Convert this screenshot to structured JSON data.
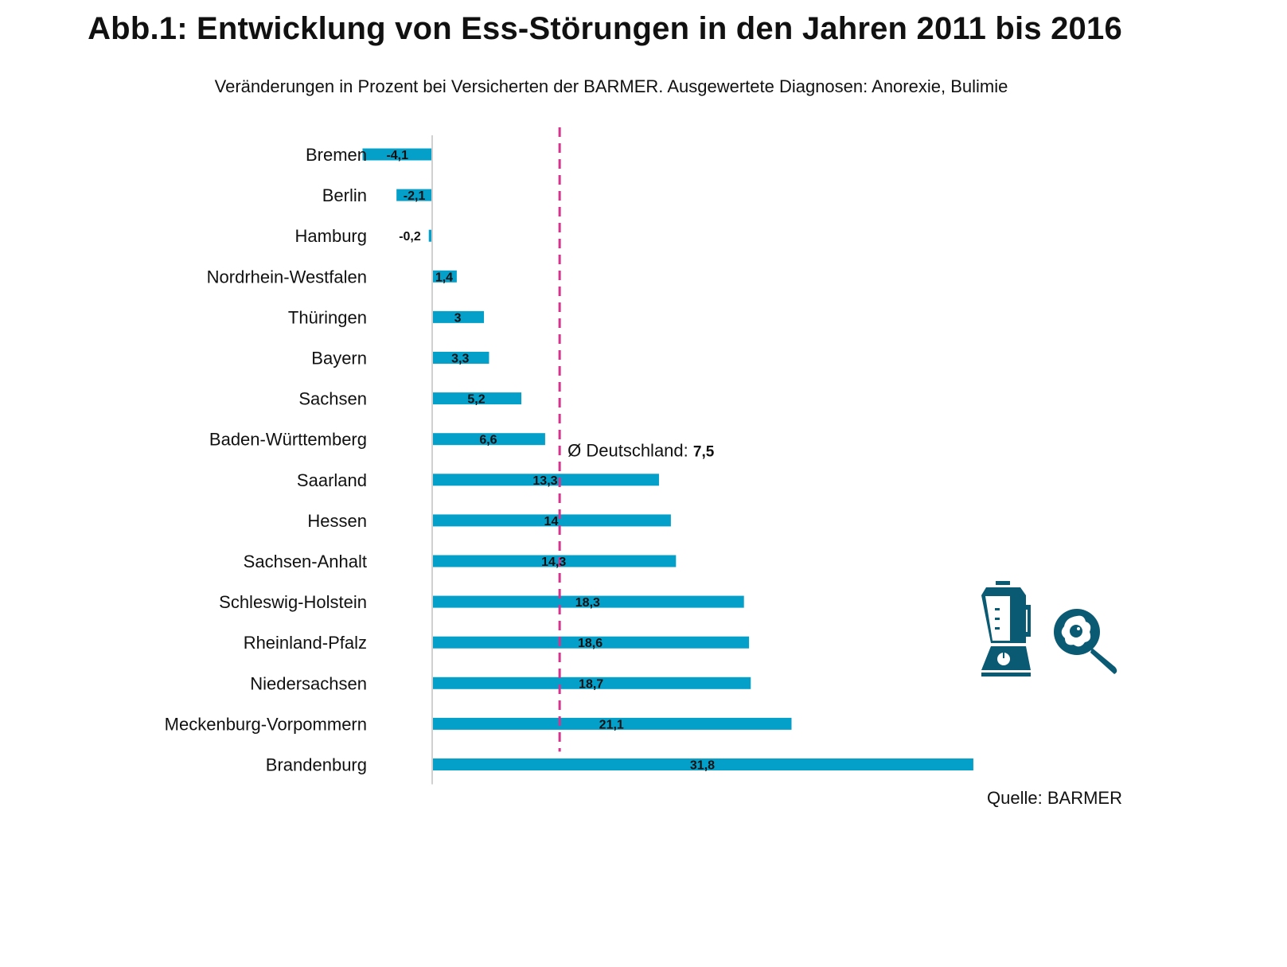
{
  "chart_data": {
    "type": "bar",
    "orientation": "horizontal",
    "title": "Abb.1: Entwicklung von Ess-Störungen in den Jahren 2011 bis 2016",
    "subtitle": "Veränderungen in Prozent bei Versicherten der BARMER. Ausgewertete Diagnosen: Anorexie, Bulimie",
    "xlabel": "",
    "ylabel": "",
    "categories": [
      "Bremen",
      "Berlin",
      "Hamburg",
      "Nordrhein-Westfalen",
      "Thüringen",
      "Bayern",
      "Sachsen",
      "Baden-Württemberg",
      "Saarland",
      "Hessen",
      "Sachsen-Anhalt",
      "Schleswig-Holstein",
      "Rheinland-Pfalz",
      "Niedersachsen",
      "Meckenburg-Vorpommern",
      "Brandenburg"
    ],
    "values": [
      -4.1,
      -2.1,
      -0.2,
      1.4,
      3,
      3.3,
      5.2,
      6.6,
      13.3,
      14,
      14.3,
      18.3,
      18.6,
      18.7,
      21.1,
      31.8
    ],
    "value_labels": [
      "-4,1",
      "-2,1",
      "-0,2",
      "1,4",
      "3",
      "3,3",
      "5,2",
      "6,6",
      "13,3",
      "14",
      "14,3",
      "18,3",
      "18,6",
      "18,7",
      "21,1",
      "31,8"
    ],
    "xlim": [
      -4.1,
      40
    ],
    "grid": false,
    "legend": "none",
    "reference_line": {
      "value": 7.5,
      "label_prefix": "Ø Deutschland: ",
      "label_value": "7,5",
      "style": "dashed"
    },
    "colors": {
      "bar": "#05a0c9",
      "reference_line": "#d6338e",
      "axis": "#d0d0d0",
      "icons": "#0b5a73"
    }
  },
  "source": "Quelle: BARMER",
  "icons": [
    "blender-icon",
    "frying-pan-egg-icon"
  ]
}
